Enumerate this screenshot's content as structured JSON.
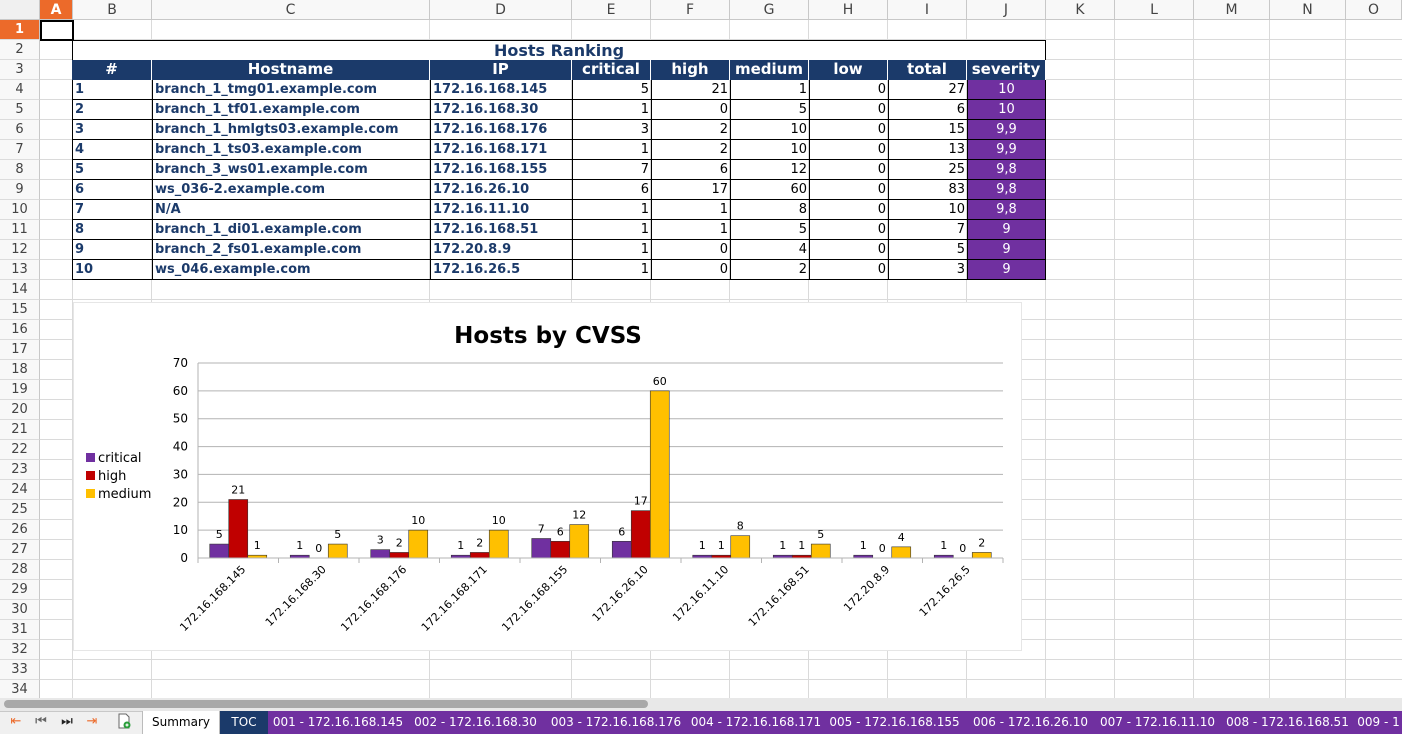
{
  "columns": [
    "A",
    "B",
    "C",
    "D",
    "E",
    "F",
    "G",
    "H",
    "I",
    "J",
    "K",
    "L",
    "M",
    "N",
    "O"
  ],
  "rows": [
    "1",
    "2",
    "3",
    "4",
    "5",
    "6",
    "7",
    "8",
    "9",
    "10",
    "11",
    "12",
    "13",
    "14",
    "15",
    "16",
    "17",
    "18",
    "19",
    "20",
    "21",
    "22",
    "23",
    "24",
    "25",
    "26",
    "27",
    "28",
    "29",
    "30",
    "31",
    "32",
    "33",
    "34"
  ],
  "table": {
    "title": "Hosts Ranking",
    "headers": [
      "#",
      "Hostname",
      "IP",
      "critical",
      "high",
      "medium",
      "low",
      "total",
      "severity"
    ],
    "rows": [
      [
        "1",
        "branch_1_tmg01.example.com",
        "172.16.168.145",
        "5",
        "21",
        "1",
        "0",
        "27",
        "10"
      ],
      [
        "2",
        "branch_1_tf01.example.com",
        "172.16.168.30",
        "1",
        "0",
        "5",
        "0",
        "6",
        "10"
      ],
      [
        "3",
        "branch_1_hmlgts03.example.com",
        "172.16.168.176",
        "3",
        "2",
        "10",
        "0",
        "15",
        "9,9"
      ],
      [
        "4",
        "branch_1_ts03.example.com",
        "172.16.168.171",
        "1",
        "2",
        "10",
        "0",
        "13",
        "9,9"
      ],
      [
        "5",
        "branch_3_ws01.example.com",
        "172.16.168.155",
        "7",
        "6",
        "12",
        "0",
        "25",
        "9,8"
      ],
      [
        "6",
        "ws_036-2.example.com",
        "172.16.26.10",
        "6",
        "17",
        "60",
        "0",
        "83",
        "9,8"
      ],
      [
        "7",
        "N/A",
        "172.16.11.10",
        "1",
        "1",
        "8",
        "0",
        "10",
        "9,8"
      ],
      [
        "8",
        "branch_1_di01.example.com",
        "172.16.168.51",
        "1",
        "1",
        "5",
        "0",
        "7",
        "9"
      ],
      [
        "9",
        "branch_2_fs01.example.com",
        "172.20.8.9",
        "1",
        "0",
        "4",
        "0",
        "5",
        "9"
      ],
      [
        "10",
        "ws_046.example.com",
        "172.16.26.5",
        "1",
        "0",
        "2",
        "0",
        "3",
        "9"
      ]
    ]
  },
  "chart_data": {
    "type": "bar",
    "title": "Hosts by CVSS",
    "categories": [
      "172.16.168.145",
      "172.16.168.30",
      "172.16.168.176",
      "172.16.168.171",
      "172.16.168.155",
      "172.16.26.10",
      "172.16.11.10",
      "172.16.168.51",
      "172.20.8.9",
      "172.16.26.5"
    ],
    "series": [
      {
        "name": "critical",
        "color": "#7030a0",
        "values": [
          5,
          1,
          3,
          1,
          7,
          6,
          1,
          1,
          1,
          1
        ]
      },
      {
        "name": "high",
        "color": "#c00000",
        "values": [
          21,
          0,
          2,
          2,
          6,
          17,
          1,
          1,
          0,
          0
        ]
      },
      {
        "name": "medium",
        "color": "#ffc000",
        "values": [
          1,
          5,
          10,
          10,
          12,
          60,
          8,
          5,
          4,
          2
        ]
      }
    ],
    "yticks": [
      "0",
      "10",
      "20",
      "30",
      "40",
      "50",
      "60",
      "70"
    ],
    "ylim": [
      0,
      70
    ],
    "legend_position": "left",
    "grid": true
  },
  "sheet_tabs": [
    "Summary",
    "TOC",
    "001 - 172.16.168.145",
    "002 - 172.16.168.30",
    "003 - 172.16.168.176",
    "004 - 172.16.168.171",
    "005 - 172.16.168.155",
    "006 - 172.16.26.10",
    "007 - 172.16.11.10",
    "008 - 172.16.168.51",
    "009 - 1"
  ],
  "nav_icons": [
    "first-sheet-icon",
    "prev-sheet-icon",
    "next-sheet-icon",
    "last-sheet-icon",
    "add-sheet-icon"
  ]
}
